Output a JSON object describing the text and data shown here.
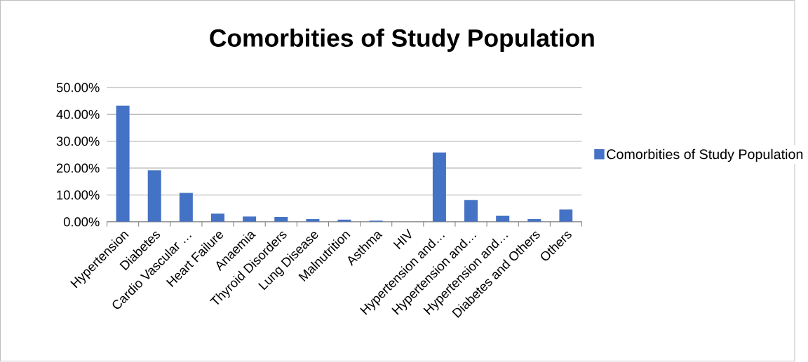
{
  "chart_data": {
    "type": "bar",
    "title": "Comorbities of Study Population",
    "categories": [
      "Hypertension",
      "Diabetes",
      "Cardio Vascular …",
      "Heart Failure",
      "Anaemia",
      "Thyroid Disorders",
      "Lung Disease",
      "Malnutrition",
      "Asthma",
      "HIV",
      "Hypertension and…",
      "Hypertension and…",
      "Hypertension and…",
      "Diabetes and Others",
      "Others"
    ],
    "series": [
      {
        "name": "Comorbities of Study Population",
        "color": "#4472c4",
        "values": [
          43.3,
          19.2,
          10.8,
          3.1,
          2.0,
          1.8,
          1.0,
          0.8,
          0.5,
          0,
          25.8,
          8.1,
          2.3,
          1.0,
          4.6
        ]
      }
    ],
    "ylim": [
      0,
      50
    ],
    "yticks": [
      {
        "value": 0,
        "label": "0.00%"
      },
      {
        "value": 10,
        "label": "10.00%"
      },
      {
        "value": 20,
        "label": "20.00%"
      },
      {
        "value": 30,
        "label": "30.00%"
      },
      {
        "value": 40,
        "label": "40.00%"
      },
      {
        "value": 50,
        "label": "50.00%"
      }
    ],
    "grid": "y",
    "legend": "right"
  }
}
